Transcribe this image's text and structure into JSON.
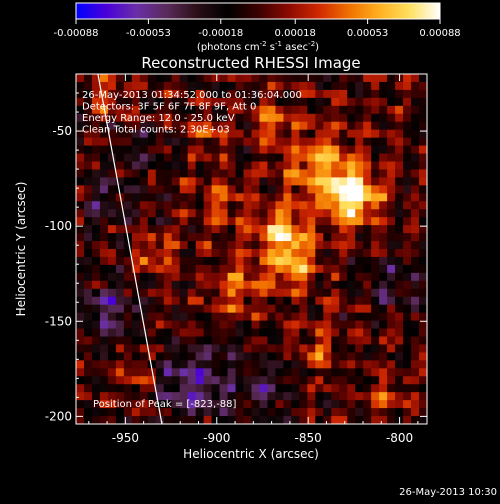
{
  "colorbar": {
    "min": -0.00088,
    "max": 0.00088,
    "tick_labels": [
      "-0.00088",
      "-0.00053",
      "-0.00018",
      "0.00018",
      "0.00053",
      "0.00088"
    ],
    "unit_prefix": "(photons cm",
    "unit_exp1": "-2",
    "unit_mid": " s",
    "unit_exp2": "-1",
    "unit_mid2": " asec",
    "unit_exp3": "-2",
    "unit_suffix": ")",
    "colors": [
      "#0000ff",
      "#4a00d8",
      "#6a2fa8",
      "#5a2a5a",
      "#2a0e16",
      "#000000",
      "#3a0000",
      "#8a0a00",
      "#d02800",
      "#f07000",
      "#ffb020",
      "#ffe060",
      "#ffffff"
    ]
  },
  "plot": {
    "title": "Reconstructed RHESSI Image",
    "info_lines": [
      "26-May-2013 01:34:52.000 to 01:36:04.000",
      "Detectors: 3F 5F 6F 7F 8F 9F, Att 0",
      "Energy Range: 12.0 - 25.0 keV",
      "Clean    Total counts: 2.30E+03"
    ],
    "peak_text": "Position of Peak = [-823,-88]",
    "footer_date": "26-May-2013 10:30"
  },
  "chart_data": {
    "type": "heatmap",
    "title": "Reconstructed RHESSI Image",
    "xlabel": "Heliocentric X (arcsec)",
    "ylabel": "Heliocentric Y (arcsec)",
    "xlim": [
      -977,
      -785
    ],
    "ylim": [
      -204,
      -20
    ],
    "x_ticks": [
      -950,
      -900,
      -850,
      -800
    ],
    "x_tick_labels": [
      "-950",
      "-900",
      "-850",
      "-800"
    ],
    "y_ticks": [
      -200,
      -150,
      -100,
      -50
    ],
    "y_tick_labels": [
      "-200",
      "-150",
      "-100",
      "-50"
    ],
    "colorbar_range": [
      -0.00088,
      0.00088
    ],
    "peak_position": [
      -823,
      -88
    ],
    "limb_line": [
      [
        -965,
        -20
      ],
      [
        -930,
        -204
      ]
    ],
    "sources": [
      {
        "x": -825,
        "y": -85,
        "amplitude": 1.0,
        "sigma": 10
      },
      {
        "x": -843,
        "y": -68,
        "amplitude": 0.6,
        "sigma": 12
      },
      {
        "x": -863,
        "y": -104,
        "amplitude": 0.75,
        "sigma": 10
      },
      {
        "x": -858,
        "y": -122,
        "amplitude": 0.5,
        "sigma": 9
      },
      {
        "x": -888,
        "y": -133,
        "amplitude": 0.45,
        "sigma": 9
      },
      {
        "x": -898,
        "y": -88,
        "amplitude": 0.35,
        "sigma": 9
      },
      {
        "x": -868,
        "y": -45,
        "amplitude": 0.4,
        "sigma": 8
      },
      {
        "x": -905,
        "y": -52,
        "amplitude": 0.32,
        "sigma": 7
      },
      {
        "x": -935,
        "y": -115,
        "amplitude": 0.35,
        "sigma": 8
      },
      {
        "x": -960,
        "y": -32,
        "amplitude": 0.35,
        "sigma": 6
      },
      {
        "x": -945,
        "y": -178,
        "amplitude": 0.28,
        "sigma": 7
      },
      {
        "x": -845,
        "y": -165,
        "amplitude": 0.28,
        "sigma": 9
      },
      {
        "x": -805,
        "y": -190,
        "amplitude": 0.25,
        "sigma": 8
      },
      {
        "x": -912,
        "y": -183,
        "amplitude": -0.6,
        "sigma": 14
      },
      {
        "x": -960,
        "y": -145,
        "amplitude": -0.45,
        "sigma": 12
      },
      {
        "x": -960,
        "y": -85,
        "amplitude": -0.35,
        "sigma": 11
      },
      {
        "x": -803,
        "y": -130,
        "amplitude": -0.3,
        "sigma": 11
      },
      {
        "x": -873,
        "y": -185,
        "amplitude": -0.32,
        "sigma": 12
      },
      {
        "x": -938,
        "y": -60,
        "amplitude": -0.22,
        "sigma": 9
      }
    ]
  }
}
